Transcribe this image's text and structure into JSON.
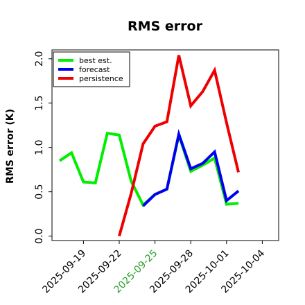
{
  "chart_data": {
    "type": "line",
    "title": "RMS error",
    "ylabel": "RMS error (K)",
    "xlabel": "",
    "ylim": [
      -0.05,
      2.1
    ],
    "yticks": [
      "0.0",
      "0.5",
      "1.0",
      "1.5",
      "2.0"
    ],
    "x_dates": [
      "2025-09-17",
      "2025-09-18",
      "2025-09-19",
      "2025-09-20",
      "2025-09-21",
      "2025-09-22",
      "2025-09-23",
      "2025-09-24",
      "2025-09-25",
      "2025-09-26",
      "2025-09-27",
      "2025-09-28",
      "2025-09-29",
      "2025-09-30",
      "2025-10-01",
      "2025-10-02",
      "2025-10-03"
    ],
    "xticks": [
      {
        "label": "2025-09-19",
        "color": "#000000"
      },
      {
        "label": "2025-09-22",
        "color": "#000000"
      },
      {
        "label": "2025-09-25",
        "color": "#2ca02c"
      },
      {
        "label": "2025-09-28",
        "color": "#000000"
      },
      {
        "label": "2025-10-01",
        "color": "#000000"
      },
      {
        "label": "2025-10-04",
        "color": "#000000"
      }
    ],
    "legend_position": "top-left",
    "series": [
      {
        "name": "best est.",
        "color": "#00ee00",
        "values": [
          0.85,
          0.94,
          0.61,
          0.6,
          1.16,
          1.14,
          0.62,
          0.35,
          0.47,
          0.53,
          1.14,
          0.73,
          0.8,
          0.88,
          0.36,
          0.37,
          null
        ]
      },
      {
        "name": "forecast",
        "color": "#0000ee",
        "values": [
          null,
          null,
          null,
          null,
          null,
          null,
          null,
          0.34,
          0.47,
          0.53,
          1.15,
          0.76,
          0.82,
          0.95,
          0.4,
          0.51,
          null
        ]
      },
      {
        "name": "persistence",
        "color": "#ee0000",
        "values": [
          null,
          null,
          null,
          null,
          null,
          0.0,
          0.48,
          1.04,
          1.24,
          1.29,
          2.04,
          1.47,
          1.63,
          1.87,
          1.28,
          0.72,
          null
        ]
      }
    ]
  }
}
